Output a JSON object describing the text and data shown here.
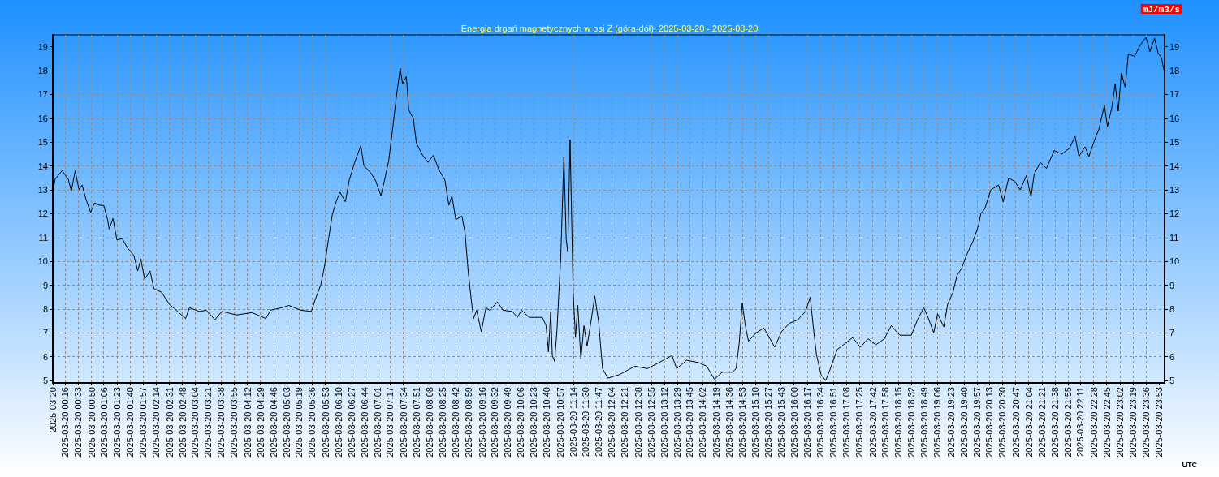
{
  "chart_data": {
    "type": "line",
    "title": "Energia drgań magnetycznych w osi Z (góra-dół): 2025-03-20 - 2025-03-20",
    "xlabel": "UTC",
    "y2label": "mJ/m3/s",
    "x": [
      "2025-03-20T00:00",
      "2025-03-20T00:03",
      "2025-03-20T00:12",
      "2025-03-20T00:20",
      "2025-03-20T00:24",
      "2025-03-20T00:29",
      "2025-03-20T00:34",
      "2025-03-20T00:38",
      "2025-03-20T00:43",
      "2025-03-20T00:49",
      "2025-03-20T00:54",
      "2025-03-20T01:01",
      "2025-03-20T01:06",
      "2025-03-20T01:11",
      "2025-03-20T01:13",
      "2025-03-20T01:18",
      "2025-03-20T01:23",
      "2025-03-20T01:30",
      "2025-03-20T01:37",
      "2025-03-20T01:45",
      "2025-03-20T01:50",
      "2025-03-20T01:54",
      "2025-03-20T01:59",
      "2025-03-20T02:06",
      "2025-03-20T02:11",
      "2025-03-20T02:21",
      "2025-03-20T02:31",
      "2025-03-20T02:40",
      "2025-03-20T02:52",
      "2025-03-20T02:57",
      "2025-03-20T03:10",
      "2025-03-20T03:19",
      "2025-03-20T03:30",
      "2025-03-20T03:39",
      "2025-03-20T03:58",
      "2025-03-20T04:18",
      "2025-03-20T04:36",
      "2025-03-20T04:42",
      "2025-03-20T04:56",
      "2025-03-20T05:06",
      "2025-03-20T05:21",
      "2025-03-20T05:35",
      "2025-03-20T05:40",
      "2025-03-20T05:47",
      "2025-03-20T05:52",
      "2025-03-20T05:57",
      "2025-03-20T06:02",
      "2025-03-20T06:07",
      "2025-03-20T06:12",
      "2025-03-20T06:19",
      "2025-03-20T06:24",
      "2025-03-20T06:31",
      "2025-03-20T06:39",
      "2025-03-20T06:43",
      "2025-03-20T06:51",
      "2025-03-20T06:58",
      "2025-03-20T07:05",
      "2025-03-20T07:10",
      "2025-03-20T07:15",
      "2025-03-20T07:20",
      "2025-03-20T07:25",
      "2025-03-20T07:30",
      "2025-03-20T07:33",
      "2025-03-20T07:38",
      "2025-03-20T07:41",
      "2025-03-20T07:47",
      "2025-03-20T07:51",
      "2025-03-20T07:59",
      "2025-03-20T08:06",
      "2025-03-20T08:13",
      "2025-03-20T08:20",
      "2025-03-20T08:28",
      "2025-03-20T08:33",
      "2025-03-20T08:37",
      "2025-03-20T08:42",
      "2025-03-20T08:50",
      "2025-03-20T08:54",
      "2025-03-20T08:58",
      "2025-03-20T09:02",
      "2025-03-20T09:05",
      "2025-03-20T09:09",
      "2025-03-20T09:15",
      "2025-03-20T09:21",
      "2025-03-20T09:26",
      "2025-03-20T09:36",
      "2025-03-20T09:43",
      "2025-03-20T09:55",
      "2025-03-20T10:02",
      "2025-03-20T10:07",
      "2025-03-20T10:17",
      "2025-03-20T10:34",
      "2025-03-20T10:39",
      "2025-03-20T10:42",
      "2025-03-20T10:45",
      "2025-03-20T10:47",
      "2025-03-20T10:50",
      "2025-03-20T10:53",
      "2025-03-20T10:58",
      "2025-03-20T11:02",
      "2025-03-20T11:05",
      "2025-03-20T11:07",
      "2025-03-20T11:10",
      "2025-03-20T11:14",
      "2025-03-20T11:17",
      "2025-03-20T11:20",
      "2025-03-20T11:24",
      "2025-03-20T11:28",
      "2025-03-20T11:32",
      "2025-03-20T11:37",
      "2025-03-20T11:42",
      "2025-03-20T11:47",
      "2025-03-20T11:52",
      "2025-03-20T11:59",
      "2025-03-20T12:09",
      "2025-03-20T12:14",
      "2025-03-20T12:34",
      "2025-03-20T12:50",
      "2025-03-20T13:05",
      "2025-03-20T13:22",
      "2025-03-20T13:28",
      "2025-03-20T13:41",
      "2025-03-20T13:57",
      "2025-03-20T14:07",
      "2025-03-20T14:17",
      "2025-03-20T14:27",
      "2025-03-20T14:40",
      "2025-03-20T14:45",
      "2025-03-20T14:49",
      "2025-03-20T14:53",
      "2025-03-20T14:57",
      "2025-03-20T15:01",
      "2025-03-20T15:11",
      "2025-03-20T15:21",
      "2025-03-20T15:29",
      "2025-03-20T15:35",
      "2025-03-20T15:44",
      "2025-03-20T15:54",
      "2025-03-20T16:05",
      "2025-03-20T16:15",
      "2025-03-20T16:21",
      "2025-03-20T16:25",
      "2025-03-20T16:29",
      "2025-03-20T16:35",
      "2025-03-20T16:41",
      "2025-03-20T16:46",
      "2025-03-20T16:56",
      "2025-03-20T17:06",
      "2025-03-20T17:16",
      "2025-03-20T17:26",
      "2025-03-20T17:36",
      "2025-03-20T17:46",
      "2025-03-20T17:57",
      "2025-03-20T18:06",
      "2025-03-20T18:17",
      "2025-03-20T18:32",
      "2025-03-20T18:40",
      "2025-03-20T18:48",
      "2025-03-20T18:53",
      "2025-03-20T19:01",
      "2025-03-20T19:06",
      "2025-03-20T19:14",
      "2025-03-20T19:19",
      "2025-03-20T19:26",
      "2025-03-20T19:31",
      "2025-03-20T19:37",
      "2025-03-20T19:44",
      "2025-03-20T19:52",
      "2025-03-20T19:59",
      "2025-03-20T20:02",
      "2025-03-20T20:07",
      "2025-03-20T20:15",
      "2025-03-20T20:25",
      "2025-03-20T20:31",
      "2025-03-20T20:38",
      "2025-03-20T20:46",
      "2025-03-20T20:53",
      "2025-03-20T21:01",
      "2025-03-20T21:07",
      "2025-03-20T21:11",
      "2025-03-20T21:19",
      "2025-03-20T21:27",
      "2025-03-20T21:37",
      "2025-03-20T21:47",
      "2025-03-20T21:57",
      "2025-03-20T22:04",
      "2025-03-20T22:09",
      "2025-03-20T22:17",
      "2025-03-20T22:22",
      "2025-03-20T22:30",
      "2025-03-20T22:35",
      "2025-03-20T22:42",
      "2025-03-20T22:46",
      "2025-03-20T22:52",
      "2025-03-20T22:56",
      "2025-03-20T23:00",
      "2025-03-20T23:04",
      "2025-03-20T23:09",
      "2025-03-20T23:13",
      "2025-03-20T23:21",
      "2025-03-20T23:29",
      "2025-03-20T23:36",
      "2025-03-20T23:41",
      "2025-03-20T23:47",
      "2025-03-20T23:52",
      "2025-03-20T23:56",
      "2025-03-20T23:59"
    ],
    "series": [
      {
        "color": "#000000",
        "values": [
          12.9,
          13.45,
          13.8,
          13.45,
          12.95,
          13.8,
          13.0,
          13.2,
          12.6,
          12.05,
          12.45,
          12.35,
          12.35,
          11.75,
          11.35,
          11.8,
          10.9,
          10.95,
          10.55,
          10.25,
          9.6,
          10.1,
          9.25,
          9.6,
          8.85,
          8.7,
          8.2,
          7.95,
          7.6,
          8.05,
          7.9,
          7.95,
          7.55,
          7.9,
          7.75,
          7.85,
          7.6,
          7.95,
          8.05,
          8.15,
          7.95,
          7.9,
          8.4,
          9.0,
          9.8,
          10.9,
          11.95,
          12.5,
          12.9,
          12.5,
          13.4,
          14.15,
          14.85,
          14.0,
          13.75,
          13.4,
          12.75,
          13.45,
          14.2,
          15.5,
          16.9,
          18.1,
          17.45,
          17.75,
          16.35,
          16.0,
          14.95,
          14.45,
          14.15,
          14.45,
          13.85,
          13.4,
          12.35,
          12.75,
          11.75,
          11.9,
          11.2,
          9.6,
          8.4,
          7.6,
          7.95,
          7.05,
          8.05,
          7.95,
          8.3,
          7.95,
          7.9,
          7.65,
          7.95,
          7.65,
          7.65,
          7.3,
          6.2,
          7.9,
          6.05,
          5.8,
          7.1,
          10.25,
          14.4,
          10.9,
          10.4,
          15.1,
          8.7,
          6.8,
          8.15,
          5.9,
          7.3,
          6.45,
          7.45,
          8.55,
          7.45,
          5.5,
          5.1,
          5.2,
          5.25,
          5.6,
          5.5,
          5.75,
          6.05,
          5.5,
          5.85,
          5.75,
          5.6,
          5.05,
          5.35,
          5.35,
          5.5,
          6.55,
          8.25,
          7.3,
          6.65,
          7.0,
          7.2,
          6.75,
          6.4,
          7.05,
          7.4,
          7.55,
          7.9,
          8.5,
          7.25,
          6.1,
          5.25,
          5.0,
          5.4,
          6.3,
          6.55,
          6.8,
          6.4,
          6.75,
          6.5,
          6.75,
          7.3,
          6.9,
          6.9,
          7.55,
          8.05,
          7.7,
          7.0,
          7.8,
          7.25,
          8.2,
          8.7,
          9.4,
          9.7,
          10.3,
          10.85,
          11.5,
          12.0,
          12.2,
          13.0,
          13.2,
          12.5,
          13.5,
          13.35,
          13.0,
          13.6,
          12.7,
          13.65,
          14.15,
          13.9,
          14.65,
          14.5,
          14.75,
          15.25,
          14.4,
          14.8,
          14.4,
          15.15,
          15.55,
          16.55,
          15.65,
          16.5,
          17.45,
          16.3,
          17.9,
          17.3,
          18.7,
          18.6,
          19.1,
          19.4,
          18.8,
          19.35,
          18.7,
          18.55,
          18.05
        ]
      }
    ],
    "xlim": [
      "2025-03-20T00:00",
      "2025-03-21T00:00"
    ],
    "xticks": [
      {
        "value": "2025-03-20T00:00",
        "label": "2025-03-20"
      },
      {
        "value": "2025-03-20T00:16",
        "label": "2025-03-20 00:16"
      },
      {
        "value": "2025-03-20T00:33",
        "label": "2025-03-20 00:33"
      },
      {
        "value": "2025-03-20T00:50",
        "label": "2025-03-20 00:50"
      },
      {
        "value": "2025-03-20T01:06",
        "label": "2025-03-20 01:06"
      },
      {
        "value": "2025-03-20T01:23",
        "label": "2025-03-20 01:23"
      },
      {
        "value": "2025-03-20T01:40",
        "label": "2025-03-20 01:40"
      },
      {
        "value": "2025-03-20T01:57",
        "label": "2025-03-20 01:57"
      },
      {
        "value": "2025-03-20T02:14",
        "label": "2025-03-20 02:14"
      },
      {
        "value": "2025-03-20T02:31",
        "label": "2025-03-20 02:31"
      },
      {
        "value": "2025-03-20T02:48",
        "label": "2025-03-20 02:48"
      },
      {
        "value": "2025-03-20T03:04",
        "label": "2025-03-20 03:04"
      },
      {
        "value": "2025-03-20T03:21",
        "label": "2025-03-20 03:21"
      },
      {
        "value": "2025-03-20T03:38",
        "label": "2025-03-20 03:38"
      },
      {
        "value": "2025-03-20T03:55",
        "label": "2025-03-20 03:55"
      },
      {
        "value": "2025-03-20T04:12",
        "label": "2025-03-20 04:12"
      },
      {
        "value": "2025-03-20T04:29",
        "label": "2025-03-20 04:29"
      },
      {
        "value": "2025-03-20T04:46",
        "label": "2025-03-20 04:46"
      },
      {
        "value": "2025-03-20T05:03",
        "label": "2025-03-20 05:03"
      },
      {
        "value": "2025-03-20T05:19",
        "label": "2025-03-20 05:19"
      },
      {
        "value": "2025-03-20T05:36",
        "label": "2025-03-20 05:36"
      },
      {
        "value": "2025-03-20T05:53",
        "label": "2025-03-20 05:53"
      },
      {
        "value": "2025-03-20T06:10",
        "label": "2025-03-20 06:10"
      },
      {
        "value": "2025-03-20T06:27",
        "label": "2025-03-20 06:27"
      },
      {
        "value": "2025-03-20T06:44",
        "label": "2025-03-20 06:44"
      },
      {
        "value": "2025-03-20T07:01",
        "label": "2025-03-20 07:01"
      },
      {
        "value": "2025-03-20T07:17",
        "label": "2025-03-20 07:17"
      },
      {
        "value": "2025-03-20T07:34",
        "label": "2025-03-20 07:34"
      },
      {
        "value": "2025-03-20T07:51",
        "label": "2025-03-20 07:51"
      },
      {
        "value": "2025-03-20T08:08",
        "label": "2025-03-20 08:08"
      },
      {
        "value": "2025-03-20T08:25",
        "label": "2025-03-20 08:25"
      },
      {
        "value": "2025-03-20T08:42",
        "label": "2025-03-20 08:42"
      },
      {
        "value": "2025-03-20T08:59",
        "label": "2025-03-20 08:59"
      },
      {
        "value": "2025-03-20T09:16",
        "label": "2025-03-20 09:16"
      },
      {
        "value": "2025-03-20T09:32",
        "label": "2025-03-20 09:32"
      },
      {
        "value": "2025-03-20T09:49",
        "label": "2025-03-20 09:49"
      },
      {
        "value": "2025-03-20T10:06",
        "label": "2025-03-20 10:06"
      },
      {
        "value": "2025-03-20T10:23",
        "label": "2025-03-20 10:23"
      },
      {
        "value": "2025-03-20T10:40",
        "label": "2025-03-20 10:40"
      },
      {
        "value": "2025-03-20T10:57",
        "label": "2025-03-20 10:57"
      },
      {
        "value": "2025-03-20T11:14",
        "label": "2025-03-20 11:14"
      },
      {
        "value": "2025-03-20T11:30",
        "label": "2025-03-20 11:30"
      },
      {
        "value": "2025-03-20T11:47",
        "label": "2025-03-20 11:47"
      },
      {
        "value": "2025-03-20T12:04",
        "label": "2025-03-20 12:04"
      },
      {
        "value": "2025-03-20T12:21",
        "label": "2025-03-20 12:21"
      },
      {
        "value": "2025-03-20T12:38",
        "label": "2025-03-20 12:38"
      },
      {
        "value": "2025-03-20T12:55",
        "label": "2025-03-20 12:55"
      },
      {
        "value": "2025-03-20T13:12",
        "label": "2025-03-20 13:12"
      },
      {
        "value": "2025-03-20T13:29",
        "label": "2025-03-20 13:29"
      },
      {
        "value": "2025-03-20T13:45",
        "label": "2025-03-20 13:45"
      },
      {
        "value": "2025-03-20T14:02",
        "label": "2025-03-20 14:02"
      },
      {
        "value": "2025-03-20T14:19",
        "label": "2025-03-20 14:19"
      },
      {
        "value": "2025-03-20T14:36",
        "label": "2025-03-20 14:36"
      },
      {
        "value": "2025-03-20T14:53",
        "label": "2025-03-20 14:53"
      },
      {
        "value": "2025-03-20T15:10",
        "label": "2025-03-20 15:10"
      },
      {
        "value": "2025-03-20T15:27",
        "label": "2025-03-20 15:27"
      },
      {
        "value": "2025-03-20T15:43",
        "label": "2025-03-20 15:43"
      },
      {
        "value": "2025-03-20T16:00",
        "label": "2025-03-20 16:00"
      },
      {
        "value": "2025-03-20T16:17",
        "label": "2025-03-20 16:17"
      },
      {
        "value": "2025-03-20T16:34",
        "label": "2025-03-20 16:34"
      },
      {
        "value": "2025-03-20T16:51",
        "label": "2025-03-20 16:51"
      },
      {
        "value": "2025-03-20T17:08",
        "label": "2025-03-20 17:08"
      },
      {
        "value": "2025-03-20T17:25",
        "label": "2025-03-20 17:25"
      },
      {
        "value": "2025-03-20T17:42",
        "label": "2025-03-20 17:42"
      },
      {
        "value": "2025-03-20T17:58",
        "label": "2025-03-20 17:58"
      },
      {
        "value": "2025-03-20T18:15",
        "label": "2025-03-20 18:15"
      },
      {
        "value": "2025-03-20T18:32",
        "label": "2025-03-20 18:32"
      },
      {
        "value": "2025-03-20T18:49",
        "label": "2025-03-20 18:49"
      },
      {
        "value": "2025-03-20T19:06",
        "label": "2025-03-20 19:06"
      },
      {
        "value": "2025-03-20T19:23",
        "label": "2025-03-20 19:23"
      },
      {
        "value": "2025-03-20T19:40",
        "label": "2025-03-20 19:40"
      },
      {
        "value": "2025-03-20T19:57",
        "label": "2025-03-20 19:57"
      },
      {
        "value": "2025-03-20T20:13",
        "label": "2025-03-20 20:13"
      },
      {
        "value": "2025-03-20T20:30",
        "label": "2025-03-20 20:30"
      },
      {
        "value": "2025-03-20T20:47",
        "label": "2025-03-20 20:47"
      },
      {
        "value": "2025-03-20T21:04",
        "label": "2025-03-20 21:04"
      },
      {
        "value": "2025-03-20T21:21",
        "label": "2025-03-20 21:21"
      },
      {
        "value": "2025-03-20T21:38",
        "label": "2025-03-20 21:38"
      },
      {
        "value": "2025-03-20T21:55",
        "label": "2025-03-20 21:55"
      },
      {
        "value": "2025-03-20T22:11",
        "label": "2025-03-20 22:11"
      },
      {
        "value": "2025-03-20T22:28",
        "label": "2025-03-20 22:28"
      },
      {
        "value": "2025-03-20T22:45",
        "label": "2025-03-20 22:45"
      },
      {
        "value": "2025-03-20T23:02",
        "label": "2025-03-20 23:02"
      },
      {
        "value": "2025-03-20T23:19",
        "label": "2025-03-20 23:19"
      },
      {
        "value": "2025-03-20T23:36",
        "label": "2025-03-20 23:36"
      },
      {
        "value": "2025-03-20T23:53",
        "label": "2025-03-20 23:53"
      }
    ],
    "ylim": [
      4.9,
      19.5
    ],
    "yticks": [
      5,
      6,
      7,
      8,
      9,
      10,
      11,
      12,
      13,
      14,
      15,
      16,
      17,
      18,
      19
    ],
    "y2lim": [
      4.9,
      19.5
    ],
    "y2ticks": [
      5,
      6,
      7,
      8,
      9,
      10,
      11,
      12,
      13,
      14,
      15,
      16,
      17,
      18,
      19
    ],
    "grid": true
  }
}
